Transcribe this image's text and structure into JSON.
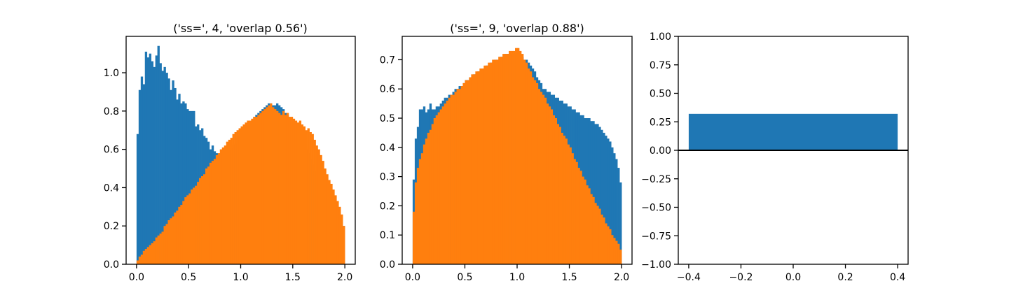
{
  "chart_data": [
    {
      "type": "bar",
      "title": "('ss=', 4, 'overlap 0.56')",
      "xlabel": "",
      "ylabel": "",
      "xlim": [
        -0.1,
        2.1
      ],
      "ylim": [
        0.0,
        1.19
      ],
      "xticks": [
        0.0,
        0.5,
        1.0,
        1.5,
        2.0
      ],
      "xtick_labels": [
        "0.0",
        "0.5",
        "1.0",
        "1.5",
        "2.0"
      ],
      "yticks": [
        0.0,
        0.2,
        0.4,
        0.6,
        0.8,
        1.0
      ],
      "ytick_labels": [
        "0.0",
        "0.2",
        "0.4",
        "0.6",
        "0.8",
        "1.0"
      ],
      "bin_range": [
        0.0,
        2.0
      ],
      "grid": false,
      "series": [
        {
          "color": "#1f77b4",
          "values": [
            0.68,
            0.91,
            0.98,
            0.94,
            1.11,
            1.08,
            1.1,
            1.06,
            1.03,
            1.09,
            1.14,
            1.05,
            1.01,
            1.03,
            1.0,
            0.97,
            0.91,
            0.96,
            0.92,
            0.86,
            0.89,
            0.84,
            0.85,
            0.84,
            0.81,
            0.8,
            0.8,
            0.8,
            0.72,
            0.73,
            0.7,
            0.71,
            0.67,
            0.66,
            0.64,
            0.6,
            0.62,
            0.59,
            0.58,
            0.56,
            0.58,
            0.55,
            0.57,
            0.6,
            0.6,
            0.61,
            0.62,
            0.63,
            0.66,
            0.67,
            0.7,
            0.71,
            0.72,
            0.73,
            0.74,
            0.75,
            0.77,
            0.78,
            0.79,
            0.8,
            0.81,
            0.82,
            0.83,
            0.84,
            0.84,
            0.83,
            0.83,
            0.84,
            0.83,
            0.82,
            0.81,
            0.79,
            0.78,
            0.76,
            0.75,
            0.72,
            0.71,
            0.69,
            0.66,
            0.64,
            0.62,
            0.6,
            0.58,
            0.55,
            0.52,
            0.49,
            0.46,
            0.44,
            0.42,
            0.41,
            0.39,
            0.36,
            0.34,
            0.32,
            0.3,
            0.28,
            0.26,
            0.24,
            0.22,
            0.2
          ]
        },
        {
          "color": "#ff7f0e",
          "values": [
            0.02,
            0.04,
            0.05,
            0.07,
            0.08,
            0.09,
            0.1,
            0.11,
            0.12,
            0.14,
            0.15,
            0.16,
            0.17,
            0.2,
            0.21,
            0.23,
            0.24,
            0.25,
            0.27,
            0.28,
            0.3,
            0.31,
            0.33,
            0.35,
            0.36,
            0.37,
            0.39,
            0.4,
            0.41,
            0.43,
            0.45,
            0.46,
            0.47,
            0.5,
            0.51,
            0.53,
            0.54,
            0.55,
            0.57,
            0.58,
            0.6,
            0.61,
            0.62,
            0.64,
            0.65,
            0.66,
            0.68,
            0.69,
            0.7,
            0.71,
            0.72,
            0.73,
            0.74,
            0.75,
            0.75,
            0.76,
            0.77,
            0.77,
            0.78,
            0.79,
            0.8,
            0.81,
            0.82,
            0.83,
            0.84,
            0.82,
            0.81,
            0.8,
            0.79,
            0.78,
            0.8,
            0.78,
            0.79,
            0.77,
            0.77,
            0.76,
            0.75,
            0.74,
            0.75,
            0.73,
            0.72,
            0.7,
            0.71,
            0.69,
            0.68,
            0.65,
            0.62,
            0.6,
            0.57,
            0.54,
            0.5,
            0.47,
            0.44,
            0.42,
            0.39,
            0.36,
            0.33,
            0.3,
            0.26,
            0.2
          ]
        }
      ]
    },
    {
      "type": "bar",
      "title": "('ss=', 9, 'overlap 0.88')",
      "xlabel": "",
      "ylabel": "",
      "xlim": [
        -0.1,
        2.1
      ],
      "ylim": [
        0.0,
        0.78
      ],
      "xticks": [
        0.0,
        0.5,
        1.0,
        1.5,
        2.0
      ],
      "xtick_labels": [
        "0.0",
        "0.5",
        "1.0",
        "1.5",
        "2.0"
      ],
      "yticks": [
        0.0,
        0.1,
        0.2,
        0.3,
        0.4,
        0.5,
        0.6,
        0.7
      ],
      "ytick_labels": [
        "0.0",
        "0.1",
        "0.2",
        "0.3",
        "0.4",
        "0.5",
        "0.6",
        "0.7"
      ],
      "bin_range": [
        0.0,
        2.0
      ],
      "grid": false,
      "series": [
        {
          "color": "#1f77b4",
          "values": [
            0.29,
            0.43,
            0.47,
            0.53,
            0.53,
            0.54,
            0.52,
            0.53,
            0.55,
            0.53,
            0.53,
            0.54,
            0.54,
            0.55,
            0.56,
            0.57,
            0.57,
            0.58,
            0.58,
            0.59,
            0.6,
            0.6,
            0.61,
            0.61,
            0.62,
            0.63,
            0.63,
            0.64,
            0.64,
            0.65,
            0.65,
            0.66,
            0.66,
            0.67,
            0.67,
            0.68,
            0.68,
            0.69,
            0.69,
            0.7,
            0.7,
            0.7,
            0.71,
            0.71,
            0.72,
            0.72,
            0.72,
            0.72,
            0.72,
            0.72,
            0.72,
            0.71,
            0.71,
            0.7,
            0.7,
            0.69,
            0.68,
            0.67,
            0.66,
            0.64,
            0.63,
            0.62,
            0.6,
            0.6,
            0.59,
            0.59,
            0.58,
            0.58,
            0.57,
            0.57,
            0.56,
            0.56,
            0.55,
            0.55,
            0.54,
            0.54,
            0.53,
            0.53,
            0.52,
            0.52,
            0.51,
            0.51,
            0.5,
            0.5,
            0.5,
            0.49,
            0.49,
            0.48,
            0.48,
            0.47,
            0.46,
            0.45,
            0.44,
            0.43,
            0.42,
            0.4,
            0.38,
            0.36,
            0.33,
            0.28
          ]
        },
        {
          "color": "#ff7f0e",
          "values": [
            0.18,
            0.28,
            0.33,
            0.36,
            0.38,
            0.41,
            0.43,
            0.45,
            0.46,
            0.48,
            0.5,
            0.51,
            0.52,
            0.53,
            0.54,
            0.55,
            0.56,
            0.57,
            0.58,
            0.58,
            0.59,
            0.6,
            0.6,
            0.61,
            0.62,
            0.63,
            0.63,
            0.64,
            0.65,
            0.65,
            0.66,
            0.66,
            0.67,
            0.67,
            0.68,
            0.68,
            0.69,
            0.69,
            0.7,
            0.7,
            0.7,
            0.71,
            0.71,
            0.72,
            0.72,
            0.72,
            0.73,
            0.73,
            0.73,
            0.74,
            0.74,
            0.73,
            0.72,
            0.7,
            0.69,
            0.67,
            0.66,
            0.64,
            0.63,
            0.62,
            0.6,
            0.59,
            0.58,
            0.57,
            0.55,
            0.54,
            0.53,
            0.51,
            0.5,
            0.48,
            0.47,
            0.45,
            0.44,
            0.43,
            0.41,
            0.4,
            0.38,
            0.36,
            0.35,
            0.33,
            0.32,
            0.3,
            0.29,
            0.27,
            0.26,
            0.24,
            0.23,
            0.21,
            0.2,
            0.19,
            0.17,
            0.16,
            0.14,
            0.13,
            0.12,
            0.1,
            0.09,
            0.08,
            0.07,
            0.05
          ]
        }
      ]
    },
    {
      "type": "bar",
      "title": "",
      "xlabel": "",
      "ylabel": "",
      "xlim": [
        -0.44,
        0.44
      ],
      "ylim": [
        -1.0,
        1.0
      ],
      "xticks": [
        -0.4,
        -0.2,
        0.0,
        0.2,
        0.4
      ],
      "xtick_labels": [
        "−0.4",
        "−0.2",
        "0.0",
        "0.2",
        "0.4"
      ],
      "yticks": [
        -1.0,
        -0.75,
        -0.5,
        -0.25,
        0.0,
        0.25,
        0.5,
        0.75,
        1.0
      ],
      "ytick_labels": [
        "−1.00",
        "−0.75",
        "−0.50",
        "−0.25",
        "0.00",
        "0.25",
        "0.50",
        "0.75",
        "1.00"
      ],
      "categories": [
        0
      ],
      "bar_width": 0.8,
      "values": [
        0.32
      ],
      "color": "#1f77b4",
      "hline": 0.0,
      "grid": false
    }
  ]
}
